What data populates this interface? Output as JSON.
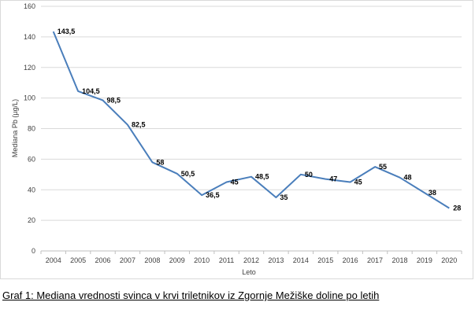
{
  "caption": "Graf 1: Mediana vrednosti svinca v krvi triletnikov iz Zgornje Mežiške doline po letih",
  "chart_data": {
    "type": "line",
    "title": "",
    "xlabel": "Leto",
    "ylabel": "Mediana Pb (µg/L)",
    "ylim": [
      0,
      160
    ],
    "ytick_step": 20,
    "grid": true,
    "line_color": "#4a7ebb",
    "categories": [
      "2004",
      "2005",
      "2006",
      "2007",
      "2008",
      "2009",
      "2010",
      "2011",
      "2012",
      "2013",
      "2014",
      "2015",
      "2016",
      "2017",
      "2018",
      "2019",
      "2020"
    ],
    "series": [
      {
        "values": [
          143.5,
          104.5,
          98.5,
          82.5,
          58,
          50.5,
          36.5,
          45,
          48.5,
          35,
          50,
          47,
          45,
          55,
          48,
          38,
          28
        ],
        "labels": [
          "143,5",
          "104,5",
          "98,5",
          "82,5",
          "58",
          "50,5",
          "36,5",
          "45",
          "48,5",
          "35",
          "50",
          "47",
          "45",
          "55",
          "48",
          "38",
          "28"
        ]
      }
    ]
  }
}
